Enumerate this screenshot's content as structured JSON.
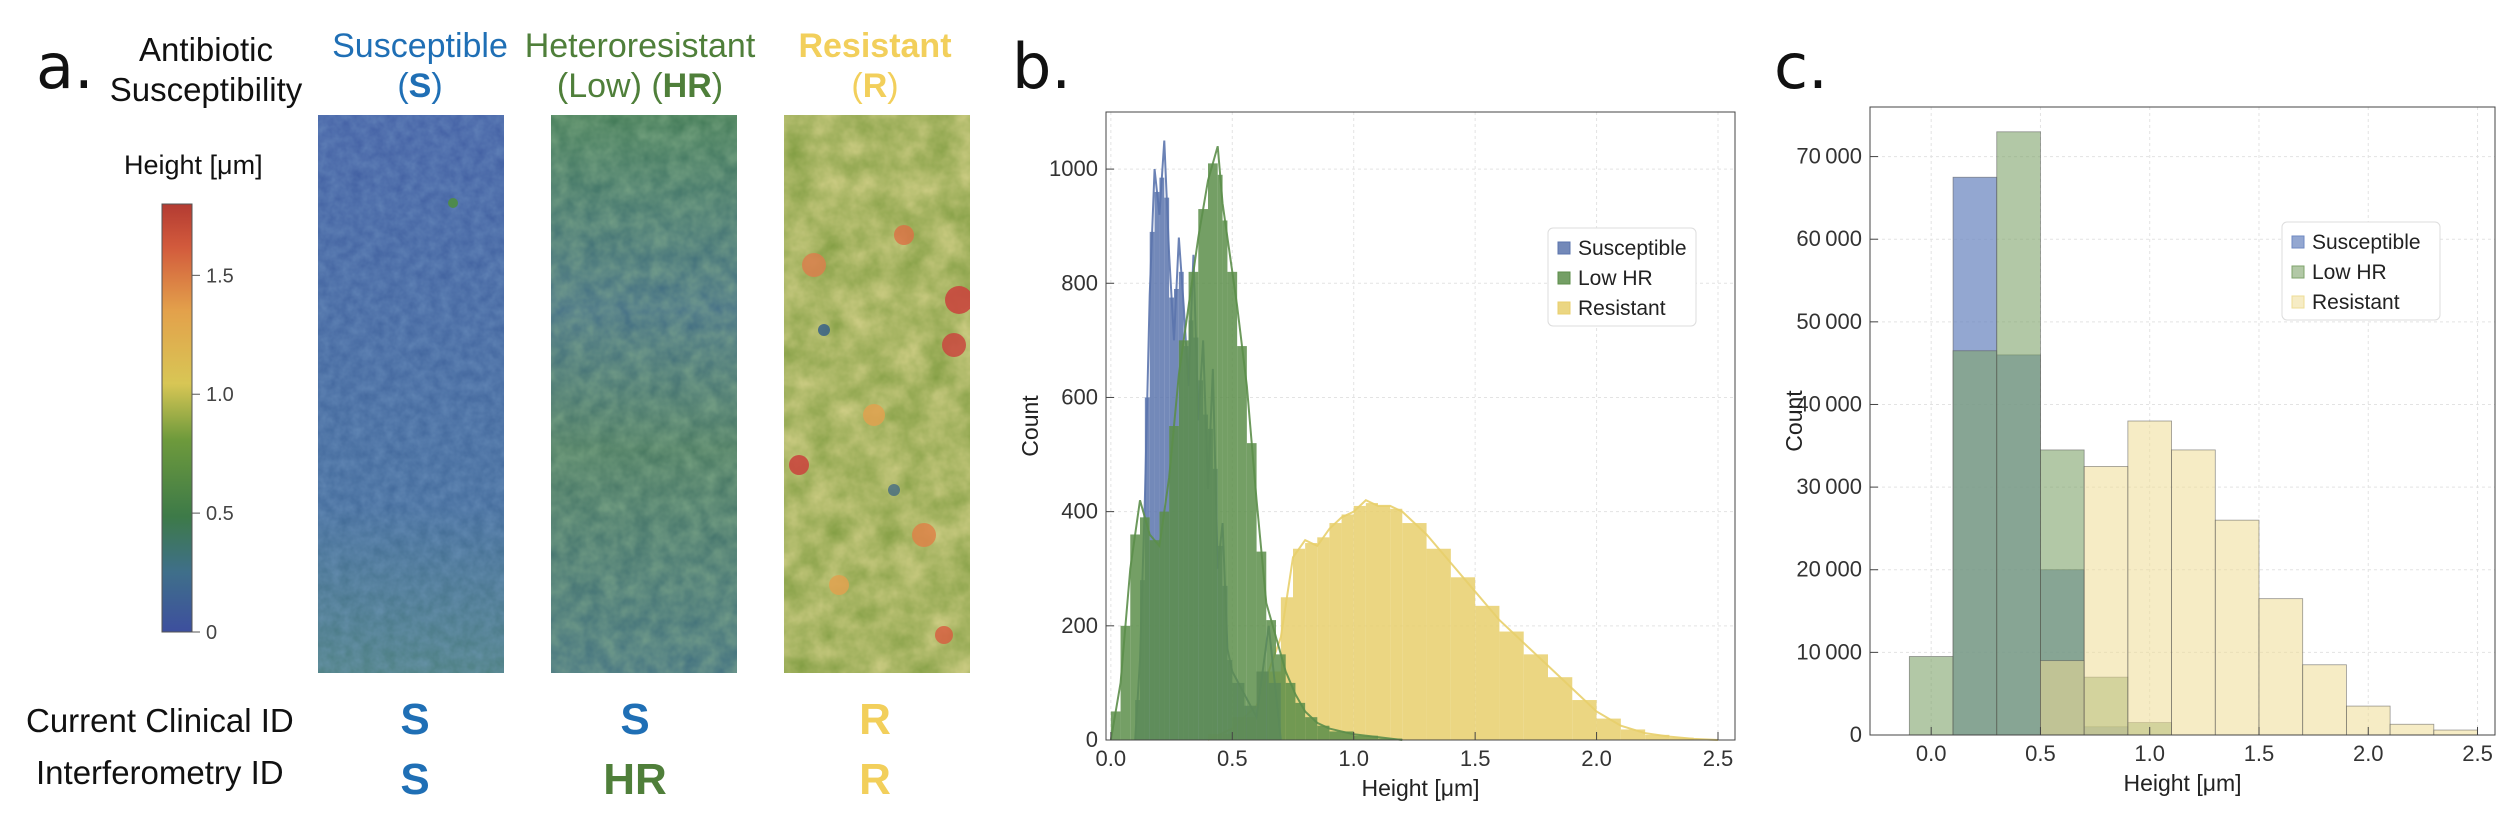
{
  "panel_a": {
    "letter": "a.",
    "susceptibility_label": [
      "Antibiotic",
      "Susceptibility"
    ],
    "colorbar": {
      "title": "Height [μm]",
      "ticks": [
        "0",
        "0.5",
        "1.0",
        "1.5"
      ],
      "tick_values": [
        0,
        0.5,
        1.0,
        1.5
      ],
      "max": 1.8
    },
    "columns": [
      {
        "line1": "Susceptible",
        "line2_pre": "(",
        "line2_bold": "S",
        "line2_post": ")",
        "color": "#1f6fb5",
        "clinical": "S",
        "clinical_color": "#1f6fb5",
        "interf": "S",
        "interf_color": "#1f6fb5"
      },
      {
        "line1": "Heteroresistant",
        "line2_pre": "(Low) (",
        "line2_bold": "HR",
        "line2_post": ")",
        "color": "#4f7f3a",
        "clinical": "S",
        "clinical_color": "#1f6fb5",
        "interf": "HR",
        "interf_color": "#4f7f3a"
      },
      {
        "line1": "Resistant",
        "line2_pre": "(",
        "line2_bold": "R",
        "line2_post": ")",
        "color": "#f2cf5b",
        "clinical": "R",
        "clinical_color": "#f2cf5b",
        "interf": "R",
        "interf_color": "#f2cf5b"
      }
    ],
    "row_labels": {
      "clinical": "Current Clinical ID",
      "interferometry": "Interferometry ID"
    }
  },
  "chart_data": [
    {
      "panel": "b.",
      "type": "bar",
      "title": "",
      "xlabel": "Height [μm]",
      "ylabel": "Count",
      "xlim": [
        -0.02,
        2.57
      ],
      "ylim": [
        0,
        1100
      ],
      "xticks": [
        0.0,
        0.5,
        1.0,
        1.5,
        2.0,
        2.5
      ],
      "xtick_labels": [
        "0.0",
        "0.5",
        "1.0",
        "1.5",
        "2.0",
        "2.5"
      ],
      "yticks": [
        0,
        200,
        400,
        600,
        800,
        1000
      ],
      "ytick_labels": [
        "0",
        "200",
        "400",
        "600",
        "800",
        "1000"
      ],
      "legend_position": "top-right",
      "series": [
        {
          "name": "Susceptible",
          "color": "#5b74ad",
          "x": [
            0.1,
            0.12,
            0.14,
            0.16,
            0.18,
            0.2,
            0.22,
            0.24,
            0.26,
            0.28,
            0.3,
            0.32,
            0.34,
            0.36,
            0.38,
            0.4,
            0.42,
            0.44,
            0.46,
            0.48,
            0.5,
            0.55,
            0.6,
            0.65,
            0.7
          ],
          "values": [
            0,
            140,
            420,
            780,
            1000,
            920,
            1050,
            850,
            700,
            880,
            760,
            620,
            850,
            560,
            700,
            440,
            650,
            300,
            380,
            160,
            120,
            80,
            40,
            200,
            0
          ]
        },
        {
          "name": "Low HR",
          "color": "#5c8e4a",
          "x": [
            0.0,
            0.04,
            0.08,
            0.12,
            0.16,
            0.2,
            0.24,
            0.28,
            0.32,
            0.36,
            0.4,
            0.44,
            0.46,
            0.48,
            0.52,
            0.56,
            0.6,
            0.64,
            0.68,
            0.72,
            0.76,
            0.8,
            0.85,
            0.9,
            1.0,
            1.1,
            1.2
          ],
          "values": [
            0,
            100,
            300,
            420,
            360,
            340,
            460,
            640,
            760,
            880,
            980,
            1040,
            940,
            880,
            760,
            620,
            420,
            240,
            180,
            120,
            80,
            50,
            30,
            20,
            10,
            5,
            0
          ]
        },
        {
          "name": "Resistant",
          "color": "#e8cf6c",
          "x": [
            0.4,
            0.5,
            0.6,
            0.7,
            0.75,
            0.8,
            0.85,
            0.9,
            0.95,
            1.0,
            1.05,
            1.1,
            1.15,
            1.2,
            1.3,
            1.4,
            1.5,
            1.6,
            1.7,
            1.8,
            1.9,
            2.0,
            2.1,
            2.2,
            2.3,
            2.4,
            2.5
          ],
          "values": [
            0,
            20,
            60,
            180,
            320,
            350,
            340,
            370,
            390,
            400,
            420,
            410,
            410,
            400,
            360,
            310,
            260,
            210,
            170,
            130,
            90,
            50,
            25,
            12,
            6,
            2,
            0
          ]
        }
      ]
    },
    {
      "panel": "c.",
      "type": "bar",
      "title": "",
      "xlabel": "Height [μm]",
      "ylabel": "Count",
      "xlim": [
        -0.28,
        2.58
      ],
      "ylim": [
        0,
        76000
      ],
      "xticks": [
        0.0,
        0.5,
        1.0,
        1.5,
        2.0,
        2.5
      ],
      "xtick_labels": [
        "0.0",
        "0.5",
        "1.0",
        "1.5",
        "2.0",
        "2.5"
      ],
      "yticks": [
        0,
        10000,
        20000,
        30000,
        40000,
        50000,
        60000,
        70000
      ],
      "ytick_labels": [
        "0",
        "10 000",
        "20 000",
        "30 000",
        "40 000",
        "50 000",
        "60 000",
        "70 000"
      ],
      "legend_position": "top-right",
      "bin_edges": [
        -0.1,
        0.1,
        0.3,
        0.5,
        0.7,
        0.9,
        1.1,
        1.3,
        1.5,
        1.7,
        1.9,
        2.1,
        2.3,
        2.5
      ],
      "series": [
        {
          "name": "Susceptible",
          "color": "#6f89c2",
          "values": [
            0,
            67500,
            46000,
            20000,
            1000,
            0,
            0,
            0,
            0,
            0,
            0,
            0,
            0
          ]
        },
        {
          "name": "Low HR",
          "color": "#7fa36b",
          "values": [
            9500,
            46500,
            73000,
            34500,
            7000,
            1500,
            0,
            0,
            0,
            0,
            0,
            0,
            0
          ]
        },
        {
          "name": "Resistant",
          "color": "#eedd95",
          "values": [
            0,
            0,
            0,
            9000,
            32500,
            38000,
            34500,
            26000,
            16500,
            8500,
            3500,
            1300,
            600
          ]
        }
      ]
    }
  ]
}
